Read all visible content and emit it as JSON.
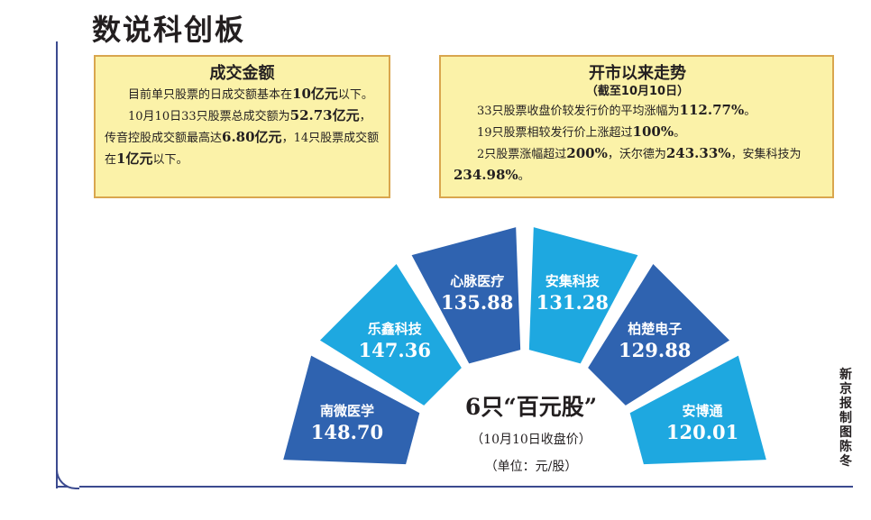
{
  "title": "数说科创板",
  "trading_volume": {
    "heading": "成交金额",
    "p1_a": "目前单只股票的日成交额基本在",
    "p1_b": "10亿元",
    "p1_c": "以下。",
    "p2_a": "10月10日33只股票总成交额为",
    "p2_b": "52.73亿元",
    "p2_c": "，传音控股成交额最高达",
    "p2_d": "6.80亿元",
    "p2_e": "，14只股票成交额在",
    "p2_f": "1亿元",
    "p2_g": "以下。"
  },
  "trend": {
    "heading": "开市以来走势",
    "subheading": "（截至10月10日）",
    "l1_a": "33只股票收盘价较发行价的平均涨幅为",
    "l1_b": "112.77%",
    "l1_c": "。",
    "l2_a": "19只股票相较发行价上涨超过",
    "l2_b": "100%",
    "l2_c": "。",
    "l3_a": "2只股票涨幅超过",
    "l3_b": "200%",
    "l3_c": "，沃尔德为",
    "l3_d": "243.33%",
    "l3_e": "，安集科技为",
    "l3_f": "234.98%",
    "l3_g": "。"
  },
  "hundred_yuan": {
    "title": "6只“百元股”",
    "note": "（10月10日收盘价）",
    "unit": "（单位：元/股）",
    "stocks": [
      {
        "name": "南微医学",
        "price": "148.70",
        "color": "#2f63b0"
      },
      {
        "name": "乐鑫科技",
        "price": "147.36",
        "color": "#1ea8e0"
      },
      {
        "name": "心脉医疗",
        "price": "135.88",
        "color": "#2f63b0"
      },
      {
        "name": "安集科技",
        "price": "131.28",
        "color": "#1ea8e0"
      },
      {
        "name": "柏楚电子",
        "price": "129.88",
        "color": "#2f63b0"
      },
      {
        "name": "安博通",
        "price": "120.01",
        "color": "#1ea8e0"
      }
    ]
  },
  "credit": "新京报制图陈冬"
}
